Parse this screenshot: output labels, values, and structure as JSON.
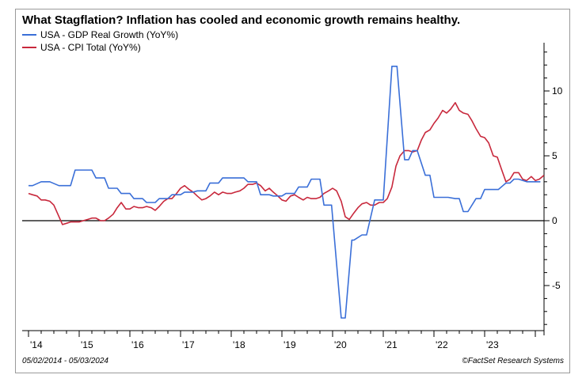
{
  "chart_data": {
    "type": "line",
    "title": "What Stagflation? Inflation has cooled and economic growth remains healthy.",
    "xlabel": "",
    "ylabel": "",
    "xlim": [
      2014.0,
      2024.35
    ],
    "ylim": [
      -9,
      13
    ],
    "y_ticks": [
      10,
      5,
      0,
      -5
    ],
    "y_tick_labels": [
      "10",
      "5",
      "0",
      "-5"
    ],
    "x_ticks": [
      2014,
      2015,
      2016,
      2017,
      2018,
      2019,
      2020,
      2021,
      2022,
      2023
    ],
    "x_tick_labels": [
      "'14",
      "'15",
      "'16",
      "'17",
      "'18",
      "'19",
      "'20",
      "'21",
      "'22",
      "'23"
    ],
    "legend_position": "top-left",
    "zero_line": true,
    "series": [
      {
        "name": "USA - GDP Real Growth (YoY%)",
        "color": "#3a6fd8",
        "x": [
          2014.0,
          2014.08,
          2014.25,
          2014.42,
          2014.6,
          2014.67,
          2014.83,
          2014.92,
          2015.08,
          2015.1,
          2015.25,
          2015.33,
          2015.5,
          2015.58,
          2015.75,
          2015.83,
          2016.0,
          2016.08,
          2016.25,
          2016.33,
          2016.5,
          2016.58,
          2016.75,
          2016.83,
          2017.0,
          2017.08,
          2017.25,
          2017.33,
          2017.5,
          2017.58,
          2017.75,
          2017.83,
          2018.0,
          2018.08,
          2018.25,
          2018.33,
          2018.5,
          2018.58,
          2018.75,
          2018.83,
          2019.0,
          2019.08,
          2019.25,
          2019.33,
          2019.5,
          2019.58,
          2019.75,
          2019.83,
          2019.98,
          2020.17,
          2020.2,
          2020.25,
          2020.38,
          2020.42,
          2020.58,
          2020.67,
          2020.83,
          2020.92,
          2021.0,
          2021.17,
          2021.2,
          2021.27,
          2021.42,
          2021.5,
          2021.58,
          2021.67,
          2021.83,
          2021.92,
          2022.0,
          2022.17,
          2022.2,
          2022.28,
          2022.42,
          2022.5,
          2022.58,
          2022.67,
          2022.83,
          2022.92,
          2023.0,
          2023.17,
          2023.2,
          2023.27,
          2023.42,
          2023.5,
          2023.58,
          2023.67,
          2023.83,
          2023.92,
          2024.1
        ],
        "values": [
          2.7,
          2.7,
          3.0,
          3.0,
          2.7,
          2.7,
          2.7,
          3.9,
          3.9,
          3.9,
          3.9,
          3.3,
          3.3,
          2.5,
          2.5,
          2.1,
          2.1,
          1.7,
          1.7,
          1.4,
          1.4,
          1.7,
          1.7,
          2.0,
          2.0,
          2.2,
          2.2,
          2.3,
          2.3,
          2.9,
          2.9,
          3.3,
          3.3,
          3.3,
          3.3,
          3.0,
          3.0,
          2.0,
          2.0,
          1.9,
          1.9,
          2.1,
          2.1,
          2.6,
          2.6,
          3.2,
          3.2,
          1.2,
          1.2,
          -7.5,
          -7.5,
          -7.5,
          -1.5,
          -1.5,
          -1.1,
          -1.1,
          1.6,
          1.6,
          1.6,
          11.9,
          11.9,
          11.9,
          4.7,
          4.7,
          5.4,
          5.4,
          3.5,
          3.5,
          1.8,
          1.8,
          1.8,
          1.8,
          1.7,
          1.7,
          0.7,
          0.7,
          1.7,
          1.7,
          2.4,
          2.4,
          2.4,
          2.4,
          2.9,
          2.9,
          3.2,
          3.2,
          3.0,
          3.0,
          3.0
        ]
      },
      {
        "name": "USA - CPI Total (YoY%)",
        "color": "#c8283c",
        "x": [
          2014.0,
          2014.08,
          2014.17,
          2014.25,
          2014.33,
          2014.42,
          2014.5,
          2014.58,
          2014.67,
          2014.75,
          2014.83,
          2014.92,
          2015.0,
          2015.08,
          2015.17,
          2015.25,
          2015.33,
          2015.42,
          2015.5,
          2015.58,
          2015.67,
          2015.75,
          2015.83,
          2015.92,
          2016.0,
          2016.08,
          2016.17,
          2016.25,
          2016.33,
          2016.42,
          2016.5,
          2016.58,
          2016.67,
          2016.75,
          2016.83,
          2016.92,
          2017.0,
          2017.08,
          2017.17,
          2017.25,
          2017.33,
          2017.42,
          2017.5,
          2017.58,
          2017.67,
          2017.75,
          2017.83,
          2017.92,
          2018.0,
          2018.08,
          2018.17,
          2018.25,
          2018.33,
          2018.42,
          2018.5,
          2018.58,
          2018.67,
          2018.75,
          2018.83,
          2018.92,
          2019.0,
          2019.08,
          2019.17,
          2019.25,
          2019.33,
          2019.42,
          2019.5,
          2019.58,
          2019.67,
          2019.75,
          2019.83,
          2019.92,
          2020.0,
          2020.08,
          2020.17,
          2020.25,
          2020.33,
          2020.42,
          2020.5,
          2020.58,
          2020.67,
          2020.75,
          2020.83,
          2020.92,
          2021.0,
          2021.08,
          2021.17,
          2021.25,
          2021.33,
          2021.42,
          2021.5,
          2021.58,
          2021.67,
          2021.75,
          2021.83,
          2021.92,
          2022.0,
          2022.08,
          2022.17,
          2022.25,
          2022.33,
          2022.42,
          2022.5,
          2022.58,
          2022.67,
          2022.75,
          2022.83,
          2022.92,
          2023.0,
          2023.08,
          2023.17,
          2023.25,
          2023.33,
          2023.42,
          2023.5,
          2023.58,
          2023.67,
          2023.75,
          2023.83,
          2023.92,
          2024.0,
          2024.08,
          2024.17
        ],
        "values": [
          2.1,
          2.0,
          1.9,
          1.6,
          1.6,
          1.5,
          1.2,
          0.5,
          -0.3,
          -0.2,
          -0.1,
          -0.1,
          -0.1,
          0.0,
          0.1,
          0.2,
          0.2,
          0.0,
          0.0,
          0.2,
          0.5,
          1.0,
          1.4,
          0.9,
          0.9,
          1.1,
          1.0,
          1.0,
          1.1,
          1.0,
          0.8,
          1.1,
          1.5,
          1.7,
          1.7,
          2.1,
          2.5,
          2.7,
          2.4,
          2.2,
          1.9,
          1.6,
          1.7,
          1.9,
          2.2,
          2.0,
          2.2,
          2.1,
          2.1,
          2.2,
          2.3,
          2.5,
          2.8,
          2.8,
          2.9,
          2.7,
          2.3,
          2.5,
          2.2,
          1.9,
          1.6,
          1.5,
          1.9,
          2.0,
          1.8,
          1.6,
          1.8,
          1.7,
          1.7,
          1.8,
          2.1,
          2.3,
          2.5,
          2.3,
          1.5,
          0.3,
          0.1,
          0.6,
          1.0,
          1.3,
          1.4,
          1.2,
          1.2,
          1.4,
          1.4,
          1.7,
          2.6,
          4.2,
          5.0,
          5.4,
          5.4,
          5.3,
          5.4,
          6.2,
          6.8,
          7.0,
          7.5,
          7.9,
          8.5,
          8.3,
          8.6,
          9.1,
          8.5,
          8.3,
          8.2,
          7.7,
          7.1,
          6.5,
          6.4,
          6.0,
          5.0,
          4.9,
          4.0,
          3.0,
          3.2,
          3.7,
          3.7,
          3.2,
          3.1,
          3.4,
          3.1,
          3.2,
          3.5
        ]
      }
    ]
  },
  "footer": {
    "date_range": "05/02/2014 - 05/03/2024",
    "source": "©FactSet Research Systems"
  }
}
